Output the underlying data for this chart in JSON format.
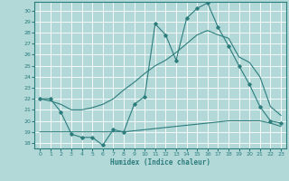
{
  "xlabel": "Humidex (Indice chaleur)",
  "bg_color": "#b2d8d8",
  "grid_color": "#ffffff",
  "line_color": "#2d7d7d",
  "xlim": [
    -0.5,
    23.5
  ],
  "ylim": [
    17.5,
    30.8
  ],
  "xticks": [
    0,
    1,
    2,
    3,
    4,
    5,
    6,
    7,
    8,
    9,
    10,
    11,
    12,
    13,
    14,
    15,
    16,
    17,
    18,
    19,
    20,
    21,
    22,
    23
  ],
  "yticks": [
    18,
    19,
    20,
    21,
    22,
    23,
    24,
    25,
    26,
    27,
    28,
    29,
    30
  ],
  "line2_x": [
    0,
    1,
    2,
    3,
    4,
    5,
    6,
    7,
    8,
    9,
    10,
    11,
    12,
    13,
    14,
    15,
    16,
    17,
    18,
    19,
    20,
    21,
    22,
    23
  ],
  "line2_y": [
    22.0,
    22.0,
    20.8,
    18.8,
    18.5,
    18.5,
    17.8,
    19.2,
    19.0,
    21.5,
    22.2,
    28.8,
    27.8,
    25.5,
    29.3,
    30.2,
    30.7,
    28.5,
    26.8,
    25.0,
    23.3,
    21.3,
    20.0,
    19.8
  ],
  "line1_x": [
    0,
    1,
    2,
    3,
    4,
    5,
    6,
    7,
    8,
    9,
    10,
    11,
    12,
    13,
    14,
    15,
    16,
    17,
    18,
    19,
    20,
    21,
    22,
    23
  ],
  "line1_y": [
    22.0,
    21.8,
    21.5,
    21.0,
    21.0,
    21.2,
    21.5,
    22.0,
    22.8,
    23.5,
    24.3,
    25.0,
    25.5,
    26.2,
    27.0,
    27.8,
    28.2,
    27.8,
    27.5,
    25.8,
    25.3,
    24.0,
    21.3,
    20.5
  ],
  "line3_x": [
    0,
    1,
    2,
    3,
    4,
    5,
    6,
    7,
    8,
    9,
    10,
    11,
    12,
    13,
    14,
    15,
    16,
    17,
    18,
    19,
    20,
    21,
    22,
    23
  ],
  "line3_y": [
    19.0,
    19.0,
    19.0,
    19.0,
    19.0,
    19.0,
    19.0,
    19.0,
    19.0,
    19.1,
    19.2,
    19.3,
    19.4,
    19.5,
    19.6,
    19.7,
    19.8,
    19.9,
    20.0,
    20.0,
    20.0,
    20.0,
    19.8,
    19.5
  ]
}
